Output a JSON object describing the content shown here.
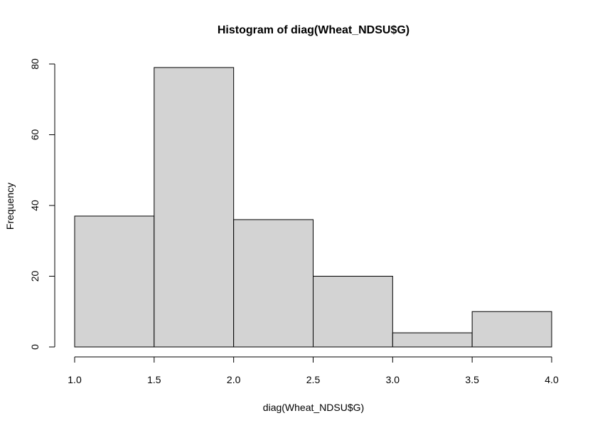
{
  "chart_data": {
    "type": "bar",
    "histogram": true,
    "title": "Histogram of diag(Wheat_NDSU$G)",
    "xlabel": "diag(Wheat_NDSU$G)",
    "ylabel": "Frequency",
    "bins": [
      {
        "from": 1.0,
        "to": 1.5,
        "count": 37
      },
      {
        "from": 1.5,
        "to": 2.0,
        "count": 79
      },
      {
        "from": 2.0,
        "to": 2.5,
        "count": 36
      },
      {
        "from": 2.5,
        "to": 3.0,
        "count": 20
      },
      {
        "from": 3.0,
        "to": 3.5,
        "count": 4
      },
      {
        "from": 3.5,
        "to": 4.0,
        "count": 10
      }
    ],
    "xlim": [
      1.0,
      4.0
    ],
    "ylim": [
      0,
      80
    ],
    "x_ticks": [
      "1.0",
      "1.5",
      "2.0",
      "2.5",
      "3.0",
      "3.5",
      "4.0"
    ],
    "y_ticks": [
      "0",
      "20",
      "40",
      "60",
      "80"
    ],
    "bar_fill": "#d3d3d3",
    "bar_stroke": "#000000",
    "grid": false,
    "legend": "none"
  }
}
